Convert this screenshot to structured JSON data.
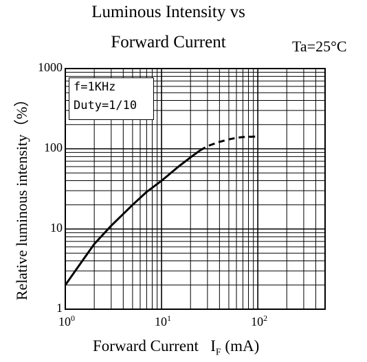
{
  "chart_data": {
    "type": "line",
    "title_line1": "Luminous Intensity vs",
    "title_line2": "Forward Current",
    "condition": "Ta=25°C",
    "xlabel_main": "Forward Current",
    "xlabel_symbol": "I",
    "xlabel_sub": "F",
    "xlabel_unit": "(mA)",
    "ylabel": "Relative luminous intensity（%）",
    "x_scale": "log",
    "y_scale": "log",
    "xlim": [
      1,
      500
    ],
    "ylim": [
      1,
      1000
    ],
    "grid": true,
    "y_tick_labels": [
      "1000",
      "100",
      "10",
      "1"
    ],
    "y_tick_values": [
      1000,
      100,
      10,
      1
    ],
    "x_tick_labels": [
      {
        "base": "10",
        "exp": "0",
        "value": 1
      },
      {
        "base": "10",
        "exp": "1",
        "value": 10
      },
      {
        "base": "10",
        "exp": "2",
        "value": 100
      }
    ],
    "legend": {
      "line1": "f=1KHz",
      "line2": "Duty=1/10",
      "placement": "top-left"
    },
    "series": [
      {
        "style": "solid",
        "x": [
          1,
          1.5,
          2,
          3,
          5,
          7,
          10,
          15,
          20,
          25
        ],
        "y": [
          2,
          4,
          6.5,
          11,
          20,
          29,
          40,
          60,
          78,
          95
        ]
      },
      {
        "style": "dashed",
        "x": [
          25,
          30,
          40,
          50,
          60,
          70,
          80,
          100
        ],
        "y": [
          95,
          108,
          122,
          131,
          137,
          140,
          141,
          142
        ]
      }
    ]
  }
}
